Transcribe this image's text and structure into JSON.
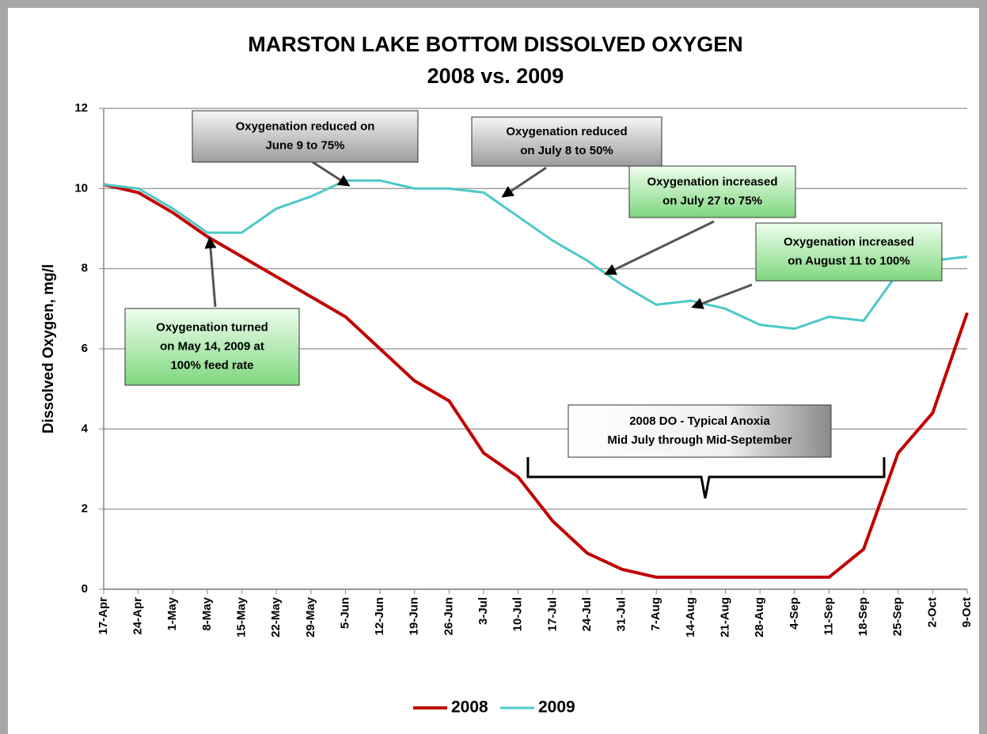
{
  "chart_data": {
    "type": "line",
    "title": "MARSTON LAKE BOTTOM DISSOLVED OXYGEN",
    "subtitle": "2008 vs. 2009",
    "y_label": "Dissolved Oxygen, mg/l",
    "categories": [
      "17-Apr",
      "24-Apr",
      "1-May",
      "8-May",
      "15-May",
      "22-May",
      "29-May",
      "5-Jun",
      "12-Jun",
      "19-Jun",
      "26-Jun",
      "3-Jul",
      "10-Jul",
      "17-Jul",
      "24-Jul",
      "31-Jul",
      "7-Aug",
      "14-Aug",
      "21-Aug",
      "28-Aug",
      "4-Sep",
      "11-Sep",
      "18-Sep",
      "25-Sep",
      "2-Oct",
      "9-Oct"
    ],
    "series": [
      {
        "name": "2008",
        "color": "#c00000",
        "values": [
          10.1,
          9.9,
          9.4,
          8.8,
          8.3,
          7.8,
          7.3,
          6.8,
          6.0,
          5.2,
          4.7,
          3.4,
          2.8,
          1.7,
          0.9,
          0.5,
          0.3,
          0.3,
          0.3,
          0.3,
          0.3,
          0.3,
          1.0,
          3.4,
          4.4,
          6.9
        ]
      },
      {
        "name": "2009",
        "color": "#4cc8c8",
        "values": [
          10.1,
          10.0,
          9.5,
          8.9,
          8.9,
          9.5,
          9.8,
          10.2,
          10.2,
          10.0,
          10.0,
          9.9,
          9.3,
          8.7,
          8.2,
          7.6,
          7.1,
          7.2,
          7.0,
          6.6,
          6.5,
          6.8,
          6.7,
          7.9,
          8.2,
          8.3
        ]
      }
    ],
    "ylim": [
      0,
      12
    ],
    "yticks": [
      0,
      2,
      4,
      6,
      8,
      10,
      12
    ],
    "grid": true,
    "legend": "bottom",
    "annotations": [
      [
        "Oxygenation reduced on",
        "June 9 to 75%"
      ],
      [
        "Oxygenation reduced",
        "on July 8 to 50%"
      ],
      [
        "Oxygenation increased",
        "on July 27 to 75%"
      ],
      [
        "Oxygenation increased",
        "on August 11 to 100%"
      ],
      [
        "Oxygenation turned",
        "on May 14, 2009 at",
        "100% feed rate"
      ],
      [
        "2008 DO - Typical Anoxia",
        "Mid July through Mid-September"
      ]
    ]
  }
}
